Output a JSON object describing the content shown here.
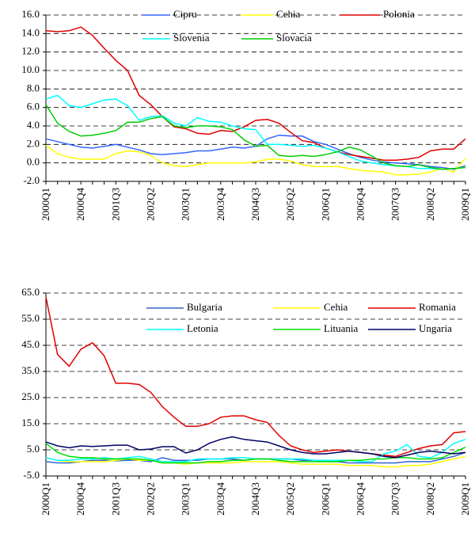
{
  "chart_data": [
    {
      "type": "line",
      "categories": [
        "2000Q1",
        null,
        null,
        "2000Q4",
        null,
        null,
        "2001Q3",
        null,
        null,
        "2002Q2",
        null,
        null,
        "2003Q1",
        null,
        null,
        "2003Q4",
        null,
        null,
        "2004Q3",
        null,
        null,
        "2005Q2",
        null,
        null,
        "2006Q1",
        null,
        null,
        "2006Q4",
        null,
        null,
        "2007Q3",
        null,
        null,
        "2008Q2",
        null,
        null,
        "2009Q1"
      ],
      "ylim": [
        -2,
        16
      ],
      "yticks": [
        {
          "value": -2,
          "label": "-2.0"
        },
        {
          "value": 0,
          "label": "0.0"
        },
        {
          "value": 2,
          "label": "2.0"
        },
        {
          "value": 4,
          "label": "4.0"
        },
        {
          "value": 6,
          "label": "6.0"
        },
        {
          "value": 8,
          "label": "8.0"
        },
        {
          "value": 10,
          "label": "10.0"
        },
        {
          "value": 12,
          "label": "12.0"
        },
        {
          "value": 14,
          "label": "14.0"
        },
        {
          "value": 16,
          "label": "16.0"
        }
      ],
      "grid": true,
      "series": [
        {
          "name": "Cipru",
          "color": "#3366ff",
          "values": [
            2.6,
            2.3,
            2.0,
            1.7,
            1.6,
            1.8,
            2.0,
            1.7,
            1.4,
            1.0,
            0.9,
            1.0,
            1.1,
            1.3,
            1.3,
            1.5,
            1.7,
            1.6,
            1.8,
            2.6,
            3.0,
            2.9,
            2.9,
            2.3,
            2.0,
            1.5,
            1.0,
            0.6,
            0.3,
            0.1,
            0.0,
            -0.1,
            -0.2,
            -0.4,
            -0.5,
            -0.7,
            -0.3
          ]
        },
        {
          "name": "Cehia",
          "color": "#ffff00",
          "values": [
            1.9,
            1.0,
            0.6,
            0.4,
            0.4,
            0.4,
            1.0,
            1.3,
            1.2,
            0.8,
            0.0,
            -0.3,
            -0.4,
            -0.2,
            0.0,
            0.0,
            0.0,
            0.0,
            0.1,
            0.4,
            0.4,
            0.2,
            -0.2,
            -0.4,
            -0.4,
            -0.4,
            -0.6,
            -0.8,
            -0.9,
            -1.0,
            -1.3,
            -1.3,
            -1.2,
            -1.0,
            -0.6,
            -1.0,
            0.5
          ]
        },
        {
          "name": "Polonia",
          "color": "#e00000",
          "values": [
            14.3,
            14.2,
            14.3,
            14.7,
            13.8,
            12.4,
            11.1,
            10.0,
            7.3,
            6.3,
            5.0,
            3.9,
            3.7,
            3.2,
            3.1,
            3.5,
            3.4,
            3.9,
            4.6,
            4.7,
            4.3,
            3.3,
            2.4,
            2.2,
            1.6,
            1.2,
            0.9,
            0.7,
            0.5,
            0.3,
            0.3,
            0.4,
            0.6,
            1.3,
            1.5,
            1.5,
            2.6
          ]
        },
        {
          "name": "Slovenia",
          "color": "#00ffff",
          "values": [
            6.9,
            7.3,
            6.2,
            6.0,
            6.4,
            6.8,
            6.9,
            6.2,
            4.6,
            5.0,
            5.1,
            4.3,
            4.0,
            4.9,
            4.5,
            4.4,
            4.0,
            3.7,
            3.6,
            2.0,
            2.0,
            1.9,
            1.8,
            1.9,
            1.6,
            1.2,
            0.7,
            0.2,
            0.0,
            -0.2,
            -0.3,
            -0.4,
            -0.6,
            -0.6,
            -0.7,
            -0.6,
            -0.5
          ]
        },
        {
          "name": "Slovacia",
          "color": "#00cc00",
          "values": [
            6.3,
            4.3,
            3.4,
            2.9,
            3.0,
            3.2,
            3.5,
            4.4,
            4.4,
            4.8,
            5.0,
            4.0,
            3.8,
            4.0,
            4.0,
            3.9,
            3.6,
            2.5,
            1.8,
            1.9,
            0.8,
            0.7,
            0.8,
            0.7,
            0.9,
            1.2,
            1.7,
            1.4,
            0.7,
            0.0,
            -0.3,
            -0.4,
            -0.2,
            -0.5,
            -0.7,
            -0.6,
            -0.5
          ]
        }
      ]
    },
    {
      "type": "line",
      "categories": [
        "2000Q1",
        null,
        null,
        "2000Q4",
        null,
        null,
        "2001Q3",
        null,
        null,
        "2002Q2",
        null,
        null,
        "2003Q1",
        null,
        null,
        "2003Q4",
        null,
        null,
        "2004Q3",
        null,
        null,
        "2005Q2",
        null,
        null,
        "2006Q1",
        null,
        null,
        "2006Q4",
        null,
        null,
        "2007Q3",
        null,
        null,
        "2008Q2",
        null,
        null,
        "2009Q1"
      ],
      "ylim": [
        -5,
        65
      ],
      "yticks": [
        {
          "value": -5,
          "label": "-5.0"
        },
        {
          "value": 5,
          "label": "5.0"
        },
        {
          "value": 15,
          "label": "15.0"
        },
        {
          "value": 25,
          "label": "25.0"
        },
        {
          "value": 35,
          "label": "35.0"
        },
        {
          "value": 45,
          "label": "45.0"
        },
        {
          "value": 55,
          "label": "55.0"
        },
        {
          "value": 65,
          "label": "65.0"
        }
      ],
      "grid": true,
      "series": [
        {
          "name": "Bulgaria",
          "color": "#3366cc",
          "values": [
            0.5,
            0.0,
            0.0,
            0.5,
            1.0,
            1.0,
            0.8,
            1.0,
            1.0,
            0.5,
            2.0,
            1.0,
            1.0,
            1.0,
            1.5,
            1.5,
            1.5,
            1.0,
            1.5,
            1.5,
            1.5,
            1.5,
            1.0,
            1.0,
            0.5,
            0.5,
            0.0,
            0.0,
            0.0,
            0.0,
            0.0,
            0.5,
            0.5,
            0.5,
            1.5,
            2.5,
            4.0
          ]
        },
        {
          "name": "Cehia",
          "color": "#ffff00",
          "values": [
            2.0,
            1.0,
            0.5,
            0.5,
            0.5,
            0.5,
            1.0,
            1.5,
            1.0,
            1.0,
            0.0,
            0.0,
            -0.5,
            0.0,
            0.0,
            0.0,
            0.0,
            0.5,
            0.5,
            0.5,
            0.5,
            0.0,
            -0.5,
            -0.5,
            -0.5,
            -0.5,
            -1.0,
            -1.0,
            -1.0,
            -1.5,
            -1.5,
            -1.0,
            -1.0,
            -0.5,
            0.5,
            1.5,
            2.5
          ]
        },
        {
          "name": "Romania",
          "color": "#e00000",
          "values": [
            63.5,
            41.5,
            37.0,
            43.5,
            46.0,
            41.0,
            30.5,
            30.5,
            30.0,
            27.0,
            21.5,
            17.5,
            14.0,
            14.0,
            15.0,
            17.5,
            18.0,
            18.0,
            16.5,
            15.5,
            10.5,
            6.5,
            5.0,
            4.0,
            4.5,
            5.0,
            4.5,
            4.0,
            3.5,
            3.0,
            2.5,
            4.0,
            5.5,
            6.5,
            7.0,
            11.5,
            12.0
          ]
        },
        {
          "name": "Letonia",
          "color": "#00ffff",
          "values": [
            2.0,
            1.0,
            1.0,
            1.5,
            1.5,
            2.0,
            1.5,
            2.0,
            2.5,
            1.5,
            0.5,
            0.5,
            0.5,
            1.5,
            1.5,
            1.5,
            2.0,
            2.0,
            1.5,
            1.5,
            1.5,
            1.5,
            1.5,
            1.0,
            1.0,
            1.0,
            1.0,
            0.5,
            0.5,
            3.5,
            4.5,
            7.0,
            2.5,
            2.0,
            4.0,
            7.5,
            9.0
          ]
        },
        {
          "name": "Lituania",
          "color": "#00dd00",
          "values": [
            7.5,
            4.0,
            2.5,
            2.0,
            2.0,
            1.5,
            1.5,
            1.5,
            1.5,
            1.0,
            0.0,
            0.0,
            0.0,
            0.0,
            0.5,
            0.5,
            1.0,
            1.0,
            1.5,
            1.5,
            1.0,
            0.5,
            0.5,
            0.5,
            0.5,
            0.5,
            1.0,
            1.0,
            1.5,
            1.5,
            2.0,
            2.0,
            1.5,
            1.5,
            2.0,
            4.0,
            6.0
          ]
        },
        {
          "name": "Ungaria",
          "color": "#000066",
          "values": [
            8.0,
            6.5,
            5.8,
            6.5,
            6.3,
            6.5,
            6.8,
            6.8,
            5.0,
            5.3,
            6.2,
            6.2,
            3.8,
            5.0,
            7.5,
            9.0,
            10.0,
            9.0,
            8.5,
            8.0,
            6.5,
            5.0,
            4.0,
            3.5,
            3.5,
            4.0,
            4.5,
            4.0,
            3.5,
            2.5,
            2.0,
            3.0,
            4.0,
            4.5,
            4.0,
            3.5,
            4.0
          ]
        }
      ]
    }
  ]
}
